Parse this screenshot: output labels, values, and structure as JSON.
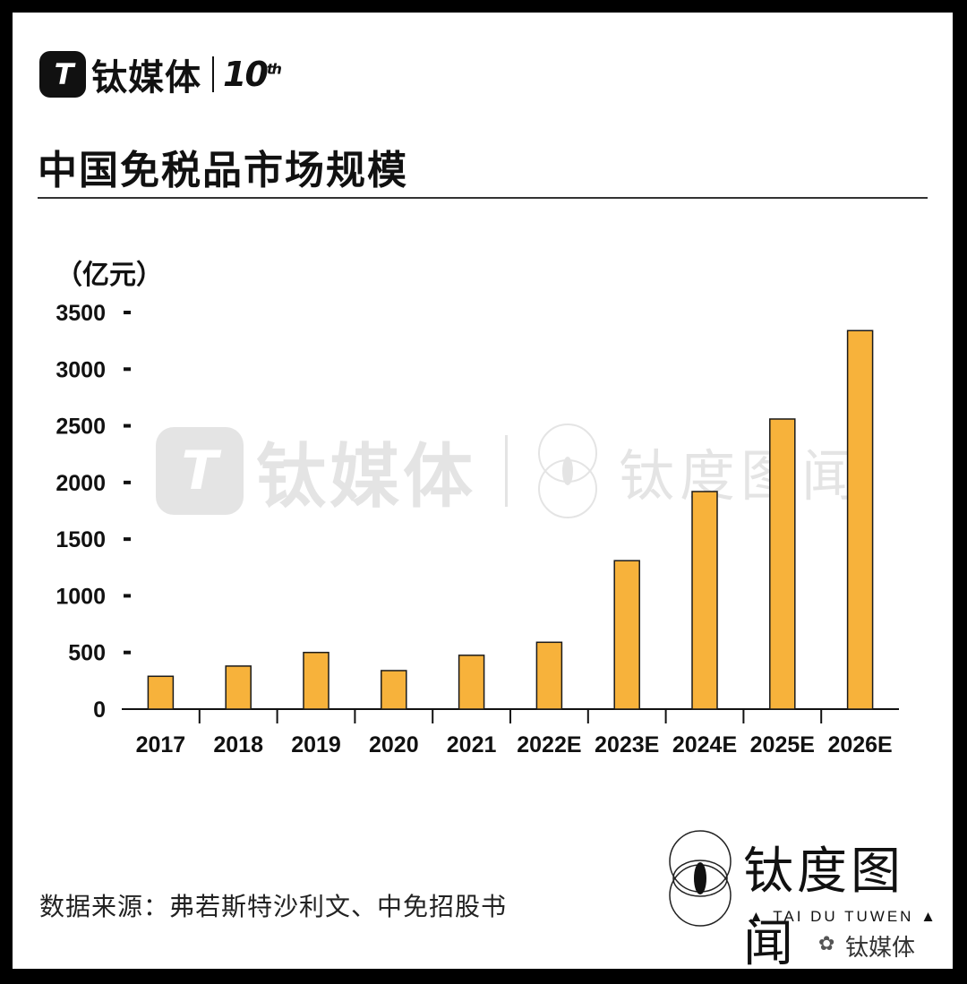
{
  "logo": {
    "badge": "T",
    "name": "钛媒体",
    "ten": "10",
    "th": "th"
  },
  "title": "中国免税品市场规模",
  "unit": "（亿元）",
  "source": "数据来源：弗若斯特沙利文、中免招股书",
  "brand": {
    "name": "钛度图闻",
    "sub": "▲ TAI DU TUWEN ▲"
  },
  "watermark": {
    "name": "钛媒体",
    "brand": "钛度图闻"
  },
  "colors": {
    "bar": "#F7B23B",
    "bar_stroke": "#1A1A1A",
    "text": "#111111"
  },
  "chart_data": {
    "type": "bar",
    "title": "中国免税品市场规模",
    "ylabel": "（亿元）",
    "xlabel": "",
    "categories": [
      "2017",
      "2018",
      "2019",
      "2020",
      "2021",
      "2022E",
      "2023E",
      "2024E",
      "2025E",
      "2026E"
    ],
    "values": [
      290,
      380,
      500,
      340,
      475,
      590,
      1310,
      1920,
      2560,
      3340
    ],
    "ylim": [
      0,
      3500
    ],
    "yticks": [
      "0",
      "500",
      "1000",
      "1500",
      "2000",
      "2500",
      "3000",
      "3500"
    ],
    "grid": false,
    "legend": "none"
  }
}
